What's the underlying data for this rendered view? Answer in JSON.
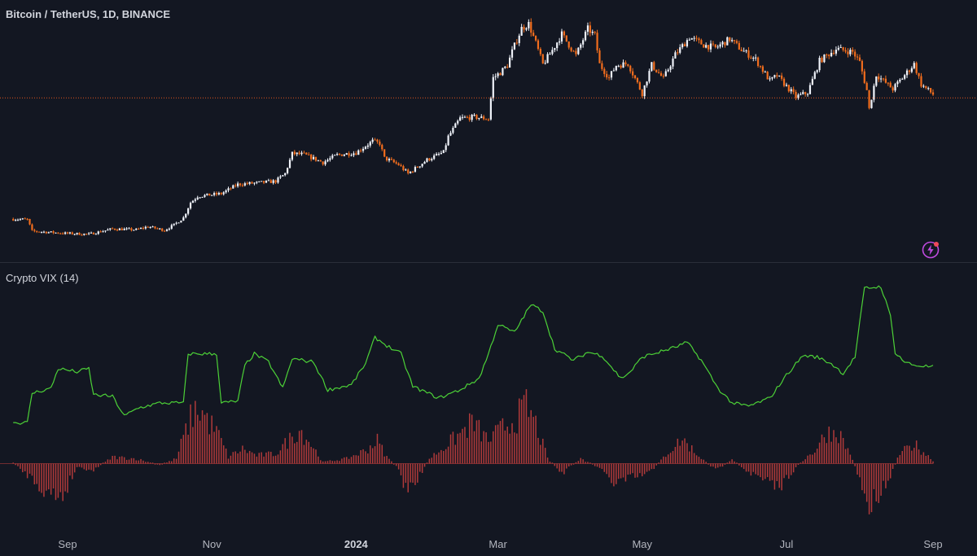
{
  "price_title": "Bitcoin / TetherUS, 1D, BINANCE",
  "indicator_title": "Crypto VIX (14)",
  "colors": {
    "background": "#131722",
    "bull_candle": "#f0f3fa",
    "bear_candle": "#f26d1d",
    "price_line": "#e2561d",
    "vix_line": "#4cd137",
    "histogram": "#b03a3a",
    "separator": "#2a2e39",
    "axis_text": "#b2b5be"
  },
  "icons": [
    "lightning-alert-icon"
  ],
  "chart_data": [
    {
      "type": "candlestick",
      "title": "Bitcoin / TetherUS, 1D, BINANCE",
      "x_range": [
        "2023-08-09",
        "2024-09-01"
      ],
      "y_range": [
        20000,
        77000
      ],
      "last_price_line": 56500,
      "keypoints": [
        [
          "2023-08-09",
          29300
        ],
        [
          "2023-08-15",
          29200
        ],
        [
          "2023-08-17",
          26600
        ],
        [
          "2023-08-31",
          26100
        ],
        [
          "2023-09-10",
          25900
        ],
        [
          "2023-09-20",
          27100
        ],
        [
          "2023-09-30",
          26900
        ],
        [
          "2023-10-05",
          27600
        ],
        [
          "2023-10-12",
          26800
        ],
        [
          "2023-10-16",
          28000
        ],
        [
          "2023-10-20",
          29600
        ],
        [
          "2023-10-23",
          33000
        ],
        [
          "2023-10-26",
          34400
        ],
        [
          "2023-11-05",
          35000
        ],
        [
          "2023-11-12",
          37100
        ],
        [
          "2023-11-20",
          37400
        ],
        [
          "2023-11-28",
          37800
        ],
        [
          "2023-12-02",
          39500
        ],
        [
          "2023-12-05",
          44000
        ],
        [
          "2023-12-10",
          43800
        ],
        [
          "2023-12-18",
          42000
        ],
        [
          "2023-12-24",
          43700
        ],
        [
          "2024-01-01",
          44200
        ],
        [
          "2024-01-08",
          46800
        ],
        [
          "2024-01-11",
          46300
        ],
        [
          "2024-01-13",
          43000
        ],
        [
          "2024-01-19",
          41500
        ],
        [
          "2024-01-23",
          39500
        ],
        [
          "2024-01-31",
          42600
        ],
        [
          "2024-02-07",
          44300
        ],
        [
          "2024-02-09",
          47800
        ],
        [
          "2024-02-14",
          51900
        ],
        [
          "2024-02-20",
          52200
        ],
        [
          "2024-02-26",
          51800
        ],
        [
          "2024-02-28",
          61000
        ],
        [
          "2024-03-02",
          62200
        ],
        [
          "2024-03-05",
          63800
        ],
        [
          "2024-03-07",
          66900
        ],
        [
          "2024-03-11",
          72100
        ],
        [
          "2024-03-14",
          73100
        ],
        [
          "2024-03-17",
          68800
        ],
        [
          "2024-03-20",
          64000
        ],
        [
          "2024-03-24",
          67200
        ],
        [
          "2024-03-28",
          70800
        ],
        [
          "2024-04-03",
          66000
        ],
        [
          "2024-04-08",
          72000
        ],
        [
          "2024-04-11",
          70500
        ],
        [
          "2024-04-13",
          64000
        ],
        [
          "2024-04-17",
          61000
        ],
        [
          "2024-04-20",
          63800
        ],
        [
          "2024-04-25",
          64200
        ],
        [
          "2024-05-01",
          57500
        ],
        [
          "2024-05-05",
          63900
        ],
        [
          "2024-05-10",
          60800
        ],
        [
          "2024-05-15",
          66200
        ],
        [
          "2024-05-21",
          70100
        ],
        [
          "2024-05-27",
          68400
        ],
        [
          "2024-06-01",
          67700
        ],
        [
          "2024-06-07",
          69700
        ],
        [
          "2024-06-12",
          67300
        ],
        [
          "2024-06-18",
          65100
        ],
        [
          "2024-06-24",
          60300
        ],
        [
          "2024-06-27",
          61500
        ],
        [
          "2024-07-05",
          56700
        ],
        [
          "2024-07-10",
          57700
        ],
        [
          "2024-07-15",
          64800
        ],
        [
          "2024-07-22",
          67500
        ],
        [
          "2024-07-29",
          66800
        ],
        [
          "2024-08-01",
          64500
        ],
        [
          "2024-08-04",
          58200
        ],
        [
          "2024-08-05",
          54000
        ],
        [
          "2024-08-08",
          61700
        ],
        [
          "2024-08-15",
          58500
        ],
        [
          "2024-08-24",
          64100
        ],
        [
          "2024-08-27",
          59500
        ],
        [
          "2024-09-01",
          57300
        ]
      ]
    },
    {
      "type": "line",
      "title": "Crypto VIX (14)",
      "series": [
        {
          "values": [
            [
              "2023-08-09",
              25
            ],
            [
              "2023-08-15",
              25
            ],
            [
              "2023-08-17",
              43
            ],
            [
              "2023-08-25",
              46
            ],
            [
              "2023-08-28",
              58
            ],
            [
              "2023-09-05",
              56
            ],
            [
              "2023-09-10",
              58
            ],
            [
              "2023-09-12",
              42
            ],
            [
              "2023-09-20",
              41
            ],
            [
              "2023-09-25",
              29
            ],
            [
              "2023-10-01",
              34
            ],
            [
              "2023-10-10",
              37
            ],
            [
              "2023-10-20",
              37
            ],
            [
              "2023-10-22",
              67
            ],
            [
              "2023-11-03",
              67
            ],
            [
              "2023-11-05",
              37
            ],
            [
              "2023-11-12",
              38
            ],
            [
              "2023-11-15",
              60
            ],
            [
              "2023-11-19",
              67
            ],
            [
              "2023-11-25",
              62
            ],
            [
              "2023-12-01",
              46
            ],
            [
              "2023-12-05",
              64
            ],
            [
              "2023-12-14",
              62
            ],
            [
              "2023-12-20",
              45
            ],
            [
              "2023-12-30",
              48
            ],
            [
              "2024-01-05",
              61
            ],
            [
              "2024-01-09",
              77
            ],
            [
              "2024-01-14",
              72
            ],
            [
              "2024-01-20",
              67
            ],
            [
              "2024-01-25",
              47
            ],
            [
              "2024-02-05",
              40
            ],
            [
              "2024-02-14",
              45
            ],
            [
              "2024-02-22",
              52
            ],
            [
              "2024-02-26",
              67
            ],
            [
              "2024-03-01",
              85
            ],
            [
              "2024-03-08",
              80
            ],
            [
              "2024-03-12",
              90
            ],
            [
              "2024-03-15",
              97
            ],
            [
              "2024-03-20",
              93
            ],
            [
              "2024-03-25",
              70
            ],
            [
              "2024-04-02",
              63
            ],
            [
              "2024-04-08",
              68
            ],
            [
              "2024-04-14",
              66
            ],
            [
              "2024-04-22",
              52
            ],
            [
              "2024-04-26",
              56
            ],
            [
              "2024-05-01",
              65
            ],
            [
              "2024-05-08",
              68
            ],
            [
              "2024-05-15",
              71
            ],
            [
              "2024-05-20",
              74
            ],
            [
              "2024-05-26",
              63
            ],
            [
              "2024-06-02",
              46
            ],
            [
              "2024-06-08",
              37
            ],
            [
              "2024-06-15",
              35
            ],
            [
              "2024-06-24",
              40
            ],
            [
              "2024-07-01",
              54
            ],
            [
              "2024-07-08",
              66
            ],
            [
              "2024-07-14",
              65
            ],
            [
              "2024-07-20",
              61
            ],
            [
              "2024-07-25",
              55
            ],
            [
              "2024-07-30",
              65
            ],
            [
              "2024-08-03",
              107
            ],
            [
              "2024-08-10",
              108
            ],
            [
              "2024-08-14",
              90
            ],
            [
              "2024-08-16",
              68
            ],
            [
              "2024-08-20",
              62
            ],
            [
              "2024-08-24",
              60
            ],
            [
              "2024-09-01",
              59
            ]
          ]
        },
        {
          "type": "histogram",
          "values": [
            [
              "2023-08-09",
              0
            ],
            [
              "2023-08-18",
              -10
            ],
            [
              "2023-08-24",
              -19
            ],
            [
              "2023-08-30",
              -19
            ],
            [
              "2023-09-05",
              -2
            ],
            [
              "2023-09-12",
              -4
            ],
            [
              "2023-09-20",
              4
            ],
            [
              "2023-09-30",
              3
            ],
            [
              "2023-10-10",
              -1
            ],
            [
              "2023-10-17",
              3
            ],
            [
              "2023-10-20",
              16
            ],
            [
              "2023-10-24",
              31
            ],
            [
              "2023-10-27",
              33
            ],
            [
              "2023-11-04",
              17
            ],
            [
              "2023-11-08",
              4
            ],
            [
              "2023-11-14",
              9
            ],
            [
              "2023-11-20",
              5
            ],
            [
              "2023-11-28",
              6
            ],
            [
              "2023-12-04",
              15
            ],
            [
              "2023-12-08",
              21
            ],
            [
              "2023-12-12",
              14
            ],
            [
              "2023-12-18",
              1
            ],
            [
              "2023-12-28",
              3
            ],
            [
              "2024-01-05",
              8
            ],
            [
              "2024-01-10",
              14
            ],
            [
              "2024-01-14",
              4
            ],
            [
              "2024-01-19",
              -3
            ],
            [
              "2024-01-23",
              -20
            ],
            [
              "2024-01-26",
              -12
            ],
            [
              "2024-02-01",
              3
            ],
            [
              "2024-02-07",
              10
            ],
            [
              "2024-02-14",
              18
            ],
            [
              "2024-02-19",
              25
            ],
            [
              "2024-02-26",
              14
            ],
            [
              "2024-03-04",
              23
            ],
            [
              "2024-03-09",
              28
            ],
            [
              "2024-03-13",
              35
            ],
            [
              "2024-03-17",
              24
            ],
            [
              "2024-03-22",
              3
            ],
            [
              "2024-03-28",
              -6
            ],
            [
              "2024-04-05",
              3
            ],
            [
              "2024-04-12",
              -2
            ],
            [
              "2024-04-19",
              -12
            ],
            [
              "2024-04-26",
              -9
            ],
            [
              "2024-05-04",
              -6
            ],
            [
              "2024-05-12",
              7
            ],
            [
              "2024-05-18",
              15
            ],
            [
              "2024-05-24",
              6
            ],
            [
              "2024-06-01",
              -4
            ],
            [
              "2024-06-08",
              2
            ],
            [
              "2024-06-15",
              -5
            ],
            [
              "2024-06-22",
              -11
            ],
            [
              "2024-06-28",
              -15
            ],
            [
              "2024-07-02",
              -7
            ],
            [
              "2024-07-08",
              2
            ],
            [
              "2024-07-13",
              8
            ],
            [
              "2024-07-18",
              19
            ],
            [
              "2024-07-23",
              19
            ],
            [
              "2024-07-29",
              3
            ],
            [
              "2024-08-02",
              -14
            ],
            [
              "2024-08-05",
              -27
            ],
            [
              "2024-08-09",
              -18
            ],
            [
              "2024-08-14",
              -7
            ],
            [
              "2024-08-18",
              6
            ],
            [
              "2024-08-24",
              12
            ],
            [
              "2024-09-01",
              2
            ]
          ]
        }
      ]
    }
  ],
  "x_axis_ticks": [
    {
      "label": "Sep",
      "date": "2023-09-01",
      "year": false
    },
    {
      "label": "Nov",
      "date": "2023-11-01",
      "year": false
    },
    {
      "label": "2024",
      "date": "2024-01-01",
      "year": true
    },
    {
      "label": "Mar",
      "date": "2024-03-01",
      "year": false
    },
    {
      "label": "May",
      "date": "2024-05-01",
      "year": false
    },
    {
      "label": "Jul",
      "date": "2024-07-01",
      "year": false
    },
    {
      "label": "Sep",
      "date": "2024-09-01",
      "year": false
    }
  ]
}
